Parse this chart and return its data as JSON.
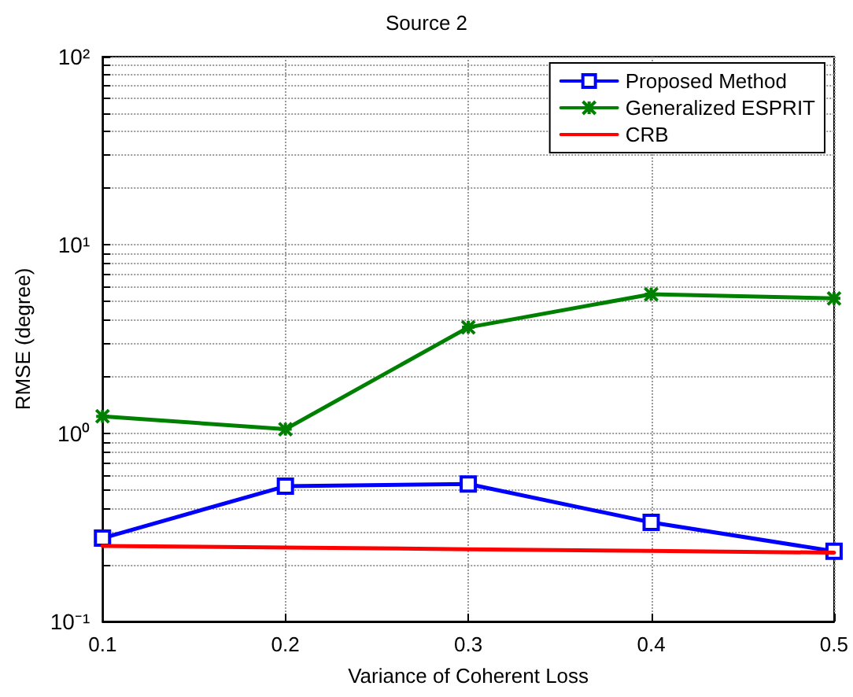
{
  "chart_data": {
    "type": "line",
    "title": "Source 2",
    "xlabel": "Variance of Coherent Loss",
    "ylabel": "RMSE (degree)",
    "x": [
      0.1,
      0.2,
      0.3,
      0.4,
      0.5
    ],
    "series": [
      {
        "name": "Proposed Method",
        "color": "#0000ff",
        "marker": "square",
        "values": [
          0.277,
          0.523,
          0.537,
          0.336,
          0.236
        ]
      },
      {
        "name": "Generalized ESPRIT",
        "color": "#008000",
        "marker": "cross",
        "values": [
          1.23,
          1.05,
          3.65,
          5.47,
          5.2
        ]
      },
      {
        "name": "CRB",
        "color": "#ff0000",
        "marker": "none",
        "values": [
          0.252,
          0.247,
          0.242,
          0.237,
          0.232
        ]
      }
    ],
    "xlim": [
      0.1,
      0.5
    ],
    "xticks": [
      0.1,
      0.2,
      0.3,
      0.4,
      0.5
    ],
    "ylim": [
      0.1,
      100
    ],
    "yticks": [
      {
        "value": 0.1,
        "label": "10⁻¹"
      },
      {
        "value": 1,
        "label": "10⁰"
      },
      {
        "value": 10,
        "label": "10¹"
      },
      {
        "value": 100,
        "label": "10²"
      }
    ],
    "log": "y",
    "grid": true,
    "legend": "top right",
    "line_style": "solid"
  }
}
